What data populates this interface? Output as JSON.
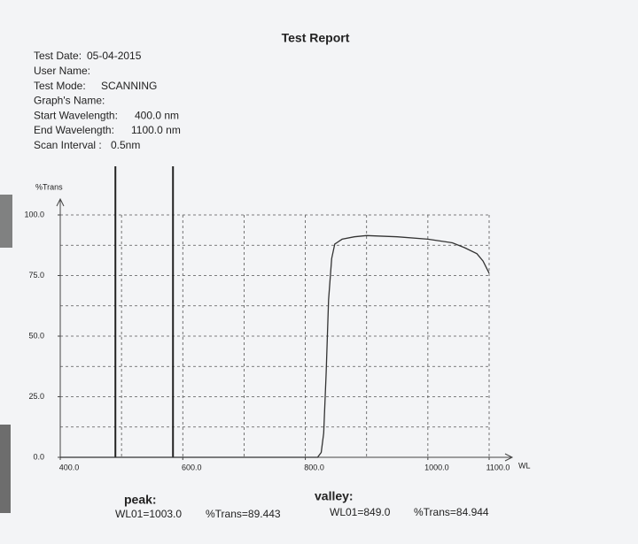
{
  "header": {
    "title": "Test Report",
    "fields": [
      {
        "label": "Test Date:",
        "value": "05-04-2015"
      },
      {
        "label": "User Name:",
        "value": ""
      },
      {
        "label": "Test Mode:",
        "value": "SCANNING"
      },
      {
        "label": "Graph's Name:",
        "value": ""
      },
      {
        "label": "Start Wavelength:",
        "value": "400.0  nm"
      },
      {
        "label": "End Wavelength:",
        "value": "1100.0  nm"
      },
      {
        "label": "Scan Interval :",
        "value": "0.5nm"
      }
    ]
  },
  "chart_data": {
    "type": "line",
    "y_label": "%Trans",
    "x_label": "WL",
    "xlim": [
      400,
      1100
    ],
    "ylim": [
      0,
      100
    ],
    "xticks": [
      {
        "value": 400,
        "label": "400.0"
      },
      {
        "value": 600,
        "label": "600.0"
      },
      {
        "value": 800,
        "label": "800.0"
      },
      {
        "value": 1000,
        "label": "1000.0"
      },
      {
        "value": 1100,
        "label": "1100.0"
      }
    ],
    "yticks": [
      {
        "value": 0,
        "label": "0.0"
      },
      {
        "value": 25,
        "label": "25.0"
      },
      {
        "value": 50,
        "label": "50.0"
      },
      {
        "value": 75,
        "label": "75.0"
      },
      {
        "value": 100,
        "label": "100.0"
      }
    ],
    "xgrid": [
      500,
      600,
      700,
      800,
      900,
      1000,
      1100
    ],
    "ygrid": [
      12.5,
      25,
      37.5,
      50,
      62.5,
      75,
      87.5,
      100
    ],
    "markers": [
      490,
      584
    ],
    "x": [
      400,
      700,
      820,
      826,
      830,
      834,
      838,
      843,
      848,
      860,
      880,
      900,
      950,
      1000,
      1040,
      1060,
      1080,
      1090,
      1100
    ],
    "series": [
      {
        "color": "#333333",
        "values": [
          0,
          0,
          0,
          2,
          10,
          35,
          65,
          82,
          88,
          90,
          91,
          91.5,
          91,
          90,
          88.5,
          86.5,
          84,
          81,
          76
        ]
      }
    ]
  },
  "results": {
    "peak": {
      "title": "peak:",
      "wl": "WL01=1003.0",
      "trans": "%Trans=89.443"
    },
    "valley": {
      "title": "valley:",
      "wl": "WL01=849.0",
      "trans": "%Trans=84.944"
    }
  }
}
